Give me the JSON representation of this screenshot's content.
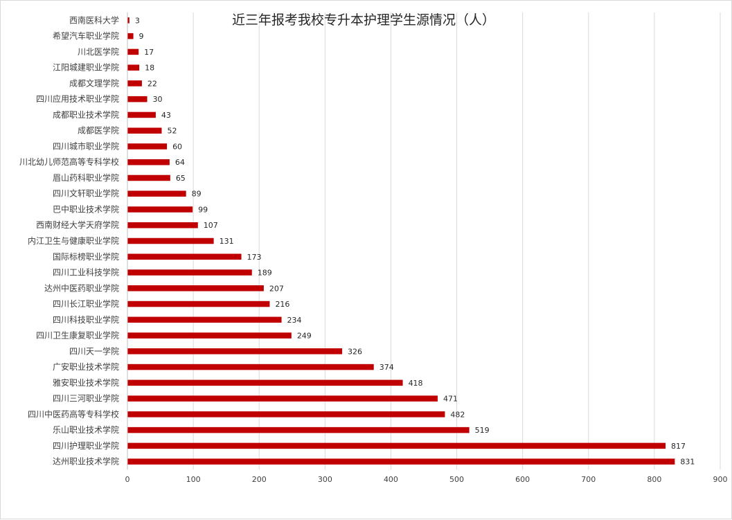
{
  "chart_data": {
    "type": "bar",
    "orientation": "horizontal",
    "title": "近三年报考我校专升本护理学生源情况（人）",
    "xlabel": "",
    "ylabel": "",
    "xlim": [
      0,
      900
    ],
    "x_ticks": [
      "0",
      "100",
      "200",
      "300",
      "400",
      "500",
      "600",
      "700",
      "800",
      "900"
    ],
    "grid": "vertical",
    "legend": "none",
    "bar_color": "#c00000",
    "grid_color": "#d9d9d9",
    "categories": [
      "西南医科大学",
      "希望汽车职业学院",
      "川北医学院",
      "江阳城建职业学院",
      "成都文理学院",
      "四川应用技术职业学院",
      "成都职业技术学院",
      "成都医学院",
      "四川城市职业学院",
      "川北幼儿师范高等专科学校",
      "眉山药科职业学院",
      "四川文轩职业学院",
      "巴中职业技术学院",
      "西南财经大学天府学院",
      "内江卫生与健康职业学院",
      "国际标榜职业学院",
      "四川工业科技学院",
      "达州中医药职业学院",
      "四川长江职业学院",
      "四川科技职业学院",
      "四川卫生康复职业学院",
      "四川天一学院",
      "广安职业技术学院",
      "雅安职业技术学院",
      "四川三河职业学院",
      "四川中医药高等专科学校",
      "乐山职业技术学院",
      "四川护理职业学院",
      "达州职业技术学院"
    ],
    "values": [
      3,
      9,
      17,
      18,
      22,
      30,
      43,
      52,
      60,
      64,
      65,
      89,
      99,
      107,
      131,
      173,
      189,
      207,
      216,
      234,
      249,
      326,
      374,
      418,
      471,
      482,
      519,
      817,
      831
    ]
  }
}
